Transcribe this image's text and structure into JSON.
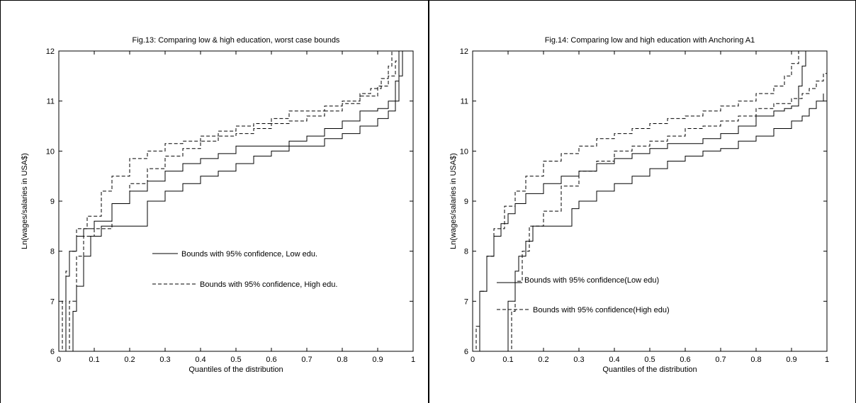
{
  "chart_data": [
    {
      "type": "line",
      "title": "Fig.13: Comparing low & high education, worst case bounds",
      "xlabel": "Quantiles of the distribution",
      "ylabel": "Ln(wages/salaries in USA$)",
      "xlim": [
        0,
        1
      ],
      "ylim": [
        6,
        12
      ],
      "xticks": [
        "0",
        "0.1",
        "0.2",
        "0.3",
        "0.4",
        "0.5",
        "0.6",
        "0.7",
        "0.8",
        "0.9",
        "1"
      ],
      "yticks": [
        "6",
        "7",
        "8",
        "9",
        "10",
        "11",
        "12"
      ],
      "grid": false,
      "legend_entries": [
        {
          "label": "Bounds with 95% confidence, Low edu.",
          "style": "solid"
        },
        {
          "label": "Bounds with 95% confidence, High edu.",
          "style": "dashed"
        }
      ],
      "series": [
        {
          "style": "solid",
          "x": [
            0.01,
            0.02,
            0.03,
            0.05,
            0.07,
            0.1,
            0.15,
            0.2,
            0.25,
            0.3,
            0.35,
            0.4,
            0.45,
            0.5,
            0.55,
            0.6,
            0.65,
            0.7,
            0.75,
            0.8,
            0.85,
            0.9,
            0.93,
            0.95,
            0.96
          ],
          "y": [
            6.0,
            7.5,
            8.0,
            8.3,
            8.45,
            8.6,
            8.95,
            9.2,
            9.4,
            9.6,
            9.75,
            9.85,
            9.95,
            10.1,
            10.1,
            10.1,
            10.2,
            10.3,
            10.45,
            10.6,
            10.8,
            10.85,
            11.0,
            11.4,
            12.0
          ]
        },
        {
          "style": "solid",
          "x": [
            0.03,
            0.04,
            0.05,
            0.07,
            0.09,
            0.12,
            0.15,
            0.2,
            0.25,
            0.3,
            0.35,
            0.4,
            0.45,
            0.5,
            0.55,
            0.6,
            0.65,
            0.7,
            0.75,
            0.8,
            0.85,
            0.9,
            0.93,
            0.95,
            0.96,
            0.97
          ],
          "y": [
            6.0,
            6.8,
            7.3,
            7.9,
            8.3,
            8.5,
            8.5,
            8.5,
            9.0,
            9.2,
            9.35,
            9.5,
            9.6,
            9.75,
            9.9,
            10.0,
            10.1,
            10.1,
            10.25,
            10.35,
            10.5,
            10.65,
            10.8,
            11.0,
            11.5,
            12.0
          ]
        },
        {
          "style": "dashed",
          "x": [
            0.0,
            0.01,
            0.02,
            0.03,
            0.05,
            0.08,
            0.12,
            0.15,
            0.2,
            0.25,
            0.3,
            0.35,
            0.4,
            0.45,
            0.5,
            0.55,
            0.6,
            0.65,
            0.7,
            0.75,
            0.8,
            0.85,
            0.88,
            0.91,
            0.93,
            0.94
          ],
          "y": [
            6.0,
            7.0,
            7.6,
            8.0,
            8.45,
            8.7,
            9.2,
            9.5,
            9.85,
            10.0,
            10.15,
            10.2,
            10.3,
            10.4,
            10.5,
            10.55,
            10.65,
            10.8,
            10.8,
            10.9,
            11.0,
            11.15,
            11.25,
            11.45,
            11.7,
            12.0
          ]
        },
        {
          "style": "dashed",
          "x": [
            0.02,
            0.03,
            0.05,
            0.07,
            0.1,
            0.15,
            0.2,
            0.25,
            0.3,
            0.35,
            0.4,
            0.45,
            0.5,
            0.55,
            0.6,
            0.65,
            0.7,
            0.75,
            0.8,
            0.85,
            0.9,
            0.93,
            0.95,
            0.96
          ],
          "y": [
            6.0,
            7.0,
            7.9,
            8.3,
            8.45,
            8.95,
            9.35,
            9.65,
            9.9,
            10.05,
            10.2,
            10.3,
            10.35,
            10.45,
            10.55,
            10.6,
            10.7,
            10.8,
            10.95,
            11.1,
            11.3,
            11.5,
            11.8,
            12.0
          ]
        }
      ]
    },
    {
      "type": "line",
      "title": "Fig.14: Comparing low and high education with Anchoring A1",
      "xlabel": "Quantiles of the distribution",
      "ylabel": "Ln(wages/salaries in USA$)",
      "xlim": [
        0,
        1
      ],
      "ylim": [
        6,
        12
      ],
      "xticks": [
        "0",
        "0.1",
        "0.2",
        "0.3",
        "0.4",
        "0.5",
        "0.6",
        "0.7",
        "0.8",
        "0.9",
        "1"
      ],
      "yticks": [
        "6",
        "7",
        "8",
        "9",
        "10",
        "11",
        "12"
      ],
      "grid": false,
      "legend_entries": [
        {
          "label": "Bounds with 95% confidence(Low edu)",
          "style": "solid"
        },
        {
          "label": "Bounds with 95% confidence(High edu)",
          "style": "dashed"
        }
      ],
      "series": [
        {
          "style": "solid",
          "x": [
            0.01,
            0.02,
            0.04,
            0.06,
            0.08,
            0.1,
            0.12,
            0.15,
            0.2,
            0.25,
            0.3,
            0.35,
            0.4,
            0.45,
            0.5,
            0.55,
            0.6,
            0.65,
            0.7,
            0.75,
            0.8,
            0.85,
            0.88,
            0.9,
            0.92,
            0.93,
            0.94
          ],
          "y": [
            6.0,
            7.2,
            7.9,
            8.3,
            8.55,
            8.75,
            8.95,
            9.15,
            9.35,
            9.5,
            9.6,
            9.75,
            9.85,
            9.95,
            10.05,
            10.15,
            10.15,
            10.25,
            10.35,
            10.5,
            10.7,
            10.8,
            10.85,
            10.9,
            11.3,
            11.7,
            12.0
          ]
        },
        {
          "style": "solid",
          "x": [
            0.09,
            0.1,
            0.12,
            0.13,
            0.15,
            0.17,
            0.2,
            0.25,
            0.28,
            0.3,
            0.35,
            0.4,
            0.45,
            0.5,
            0.55,
            0.6,
            0.65,
            0.7,
            0.75,
            0.8,
            0.85,
            0.9,
            0.93,
            0.95,
            0.97,
            0.99
          ],
          "y": [
            6.0,
            7.0,
            7.6,
            7.9,
            8.2,
            8.5,
            8.5,
            8.5,
            8.85,
            9.0,
            9.2,
            9.35,
            9.5,
            9.65,
            9.8,
            9.9,
            10.0,
            10.05,
            10.2,
            10.3,
            10.45,
            10.6,
            10.7,
            10.85,
            11.0,
            11.15
          ]
        },
        {
          "style": "dashed",
          "x": [
            0.0,
            0.01,
            0.02,
            0.04,
            0.06,
            0.09,
            0.12,
            0.15,
            0.2,
            0.25,
            0.3,
            0.35,
            0.4,
            0.45,
            0.5,
            0.55,
            0.6,
            0.65,
            0.7,
            0.75,
            0.8,
            0.85,
            0.88,
            0.9,
            0.92
          ],
          "y": [
            6.0,
            6.5,
            7.2,
            7.9,
            8.45,
            8.9,
            9.2,
            9.5,
            9.8,
            9.95,
            10.1,
            10.25,
            10.35,
            10.45,
            10.55,
            10.65,
            10.7,
            10.8,
            10.9,
            11.0,
            11.15,
            11.3,
            11.5,
            11.75,
            12.0
          ]
        },
        {
          "style": "dashed",
          "x": [
            0.1,
            0.11,
            0.12,
            0.14,
            0.16,
            0.2,
            0.25,
            0.3,
            0.35,
            0.4,
            0.45,
            0.5,
            0.55,
            0.6,
            0.65,
            0.7,
            0.75,
            0.8,
            0.85,
            0.9,
            0.93,
            0.95,
            0.97,
            0.99,
            1.0
          ],
          "y": [
            6.0,
            6.8,
            7.4,
            8.0,
            8.5,
            8.8,
            9.3,
            9.6,
            9.8,
            10.0,
            10.1,
            10.2,
            10.3,
            10.45,
            10.5,
            10.6,
            10.7,
            10.85,
            10.95,
            11.05,
            11.15,
            11.25,
            11.4,
            11.55,
            11.7
          ]
        }
      ]
    }
  ]
}
